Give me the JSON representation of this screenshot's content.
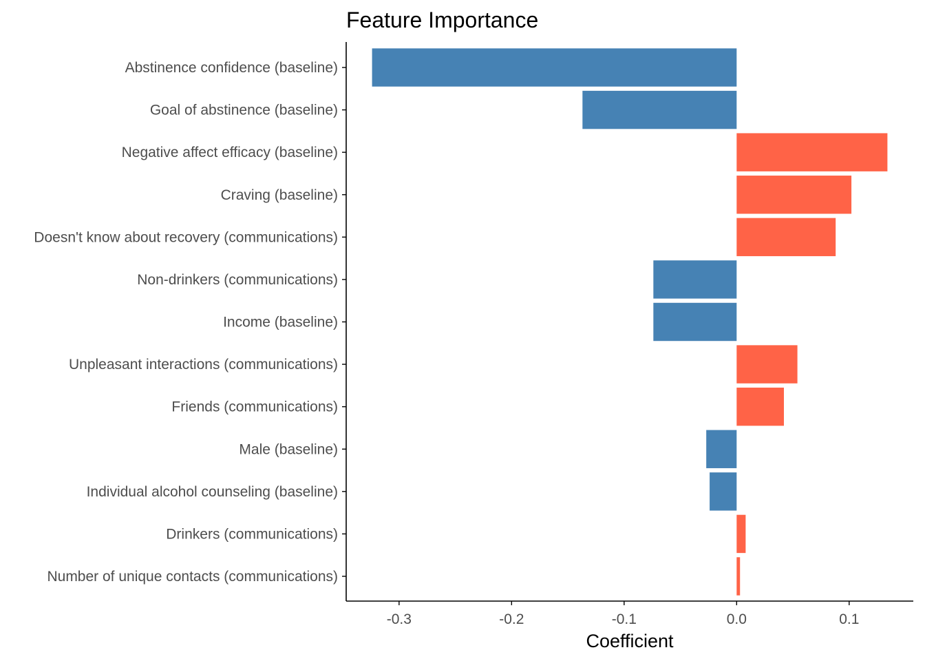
{
  "chart_data": {
    "type": "bar",
    "orientation": "horizontal",
    "title": "Feature Importance",
    "xlabel": "Coefficient",
    "ylabel": "",
    "categories": [
      "Abstinence confidence (baseline)",
      "Goal of abstinence (baseline)",
      "Negative affect efficacy (baseline)",
      "Craving (baseline)",
      "Doesn't know about recovery (communications)",
      "Non-drinkers (communications)",
      "Income (baseline)",
      "Unpleasant interactions (communications)",
      "Friends (communications)",
      "Male (baseline)",
      "Individual alcohol counseling (baseline)",
      "Drinkers (communications)",
      "Number of unique contacts (communications)"
    ],
    "values": [
      -0.324,
      -0.137,
      0.134,
      0.102,
      0.088,
      -0.074,
      -0.074,
      0.054,
      0.042,
      -0.027,
      -0.024,
      0.008,
      0.003
    ],
    "xlim": [
      -0.347,
      0.157
    ],
    "xticks": [
      -0.3,
      -0.2,
      -0.1,
      0.0,
      0.1
    ],
    "xtick_labels": [
      "-0.3",
      "-0.2",
      "-0.1",
      "0.0",
      "0.1"
    ],
    "grid": false,
    "legend": "none",
    "colors": {
      "negative": "#4682b4",
      "positive": "#ff6347",
      "axis": "#000000",
      "tick_text": "#4d4d4d"
    }
  }
}
